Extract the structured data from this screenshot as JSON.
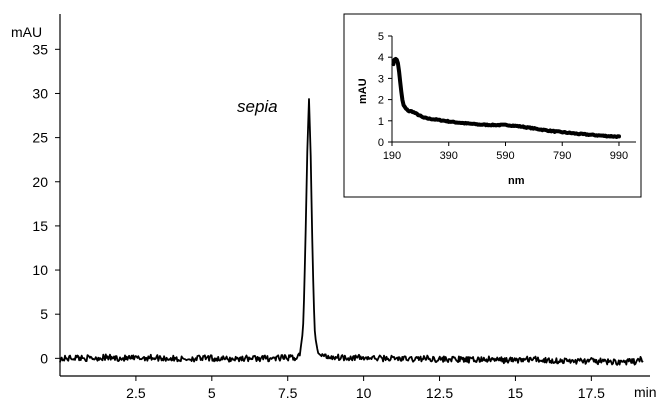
{
  "chart_data": [
    {
      "type": "line",
      "title": "",
      "xlabel": "min",
      "ylabel": "mAU",
      "xlim": [
        0,
        19.3
      ],
      "ylim": [
        -2,
        39
      ],
      "xticks": [
        2.5,
        5,
        7.5,
        10,
        12.5,
        15,
        17.5
      ],
      "xtick_labels": [
        "2.5",
        "5",
        "7.5",
        "10",
        "12.5",
        "15",
        "17.5"
      ],
      "yticks": [
        0,
        5,
        10,
        15,
        20,
        25,
        30,
        35
      ],
      "ytick_labels": [
        "0",
        "5",
        "10",
        "15",
        "20",
        "25",
        "30",
        "35"
      ],
      "grid": false,
      "annotations": [
        {
          "text": "sepia",
          "x": 8.2,
          "y": 30
        }
      ],
      "series": [
        {
          "x": [
            0,
            0.5,
            1,
            1.5,
            2,
            2.5,
            3,
            3.5,
            4,
            4.5,
            5,
            5.5,
            6,
            6.5,
            7,
            7.5,
            7.8,
            7.9,
            8.0,
            8.05,
            8.1,
            8.15,
            8.2,
            8.25,
            8.3,
            8.35,
            8.4,
            8.5,
            8.6,
            8.8,
            9,
            9.5,
            10,
            10.5,
            11,
            11.5,
            12,
            12.5,
            13,
            13.5,
            14,
            14.5,
            15,
            15.5,
            16,
            16.5,
            17,
            17.5,
            18,
            18.5,
            19,
            19.2
          ],
          "y": [
            -0.1,
            0.1,
            0,
            0.1,
            0,
            0,
            0.1,
            0,
            -0.1,
            0,
            0,
            -0.1,
            0,
            0,
            0,
            0.05,
            0.1,
            0.5,
            3,
            8,
            16,
            24,
            29.5,
            24,
            15,
            7,
            2.5,
            0.6,
            0.3,
            0.2,
            0.15,
            0.1,
            0.05,
            0,
            0,
            -0.1,
            0,
            -0.1,
            -0.1,
            -0.2,
            -0.1,
            -0.2,
            -0.2,
            -0.1,
            -0.2,
            -0.3,
            -0.3,
            -0.3,
            -0.4,
            -0.4,
            -0.4,
            0
          ]
        }
      ]
    },
    {
      "type": "line",
      "title": "",
      "xlabel": "nm",
      "ylabel": "mAU",
      "xlim": [
        190,
        1050
      ],
      "ylim": [
        0,
        5
      ],
      "xticks": [
        190,
        390,
        590,
        790,
        990
      ],
      "xtick_labels": [
        "190",
        "390",
        "590",
        "790",
        "990"
      ],
      "yticks": [
        0,
        1,
        2,
        3,
        4,
        5
      ],
      "ytick_labels": [
        "0",
        "1",
        "2",
        "3",
        "4",
        "5"
      ],
      "grid": false,
      "series": [
        {
          "x": [
            195,
            200,
            205,
            210,
            215,
            220,
            225,
            230,
            240,
            250,
            260,
            280,
            300,
            320,
            350,
            400,
            450,
            500,
            550,
            600,
            650,
            700,
            750,
            800,
            850,
            900,
            950,
            990
          ],
          "y": [
            3.7,
            3.9,
            3.95,
            3.8,
            3.3,
            2.7,
            2.1,
            1.75,
            1.55,
            1.45,
            1.45,
            1.3,
            1.15,
            1.1,
            1.05,
            0.95,
            0.88,
            0.82,
            0.8,
            0.8,
            0.72,
            0.62,
            0.52,
            0.45,
            0.38,
            0.33,
            0.28,
            0.25
          ]
        }
      ]
    }
  ]
}
